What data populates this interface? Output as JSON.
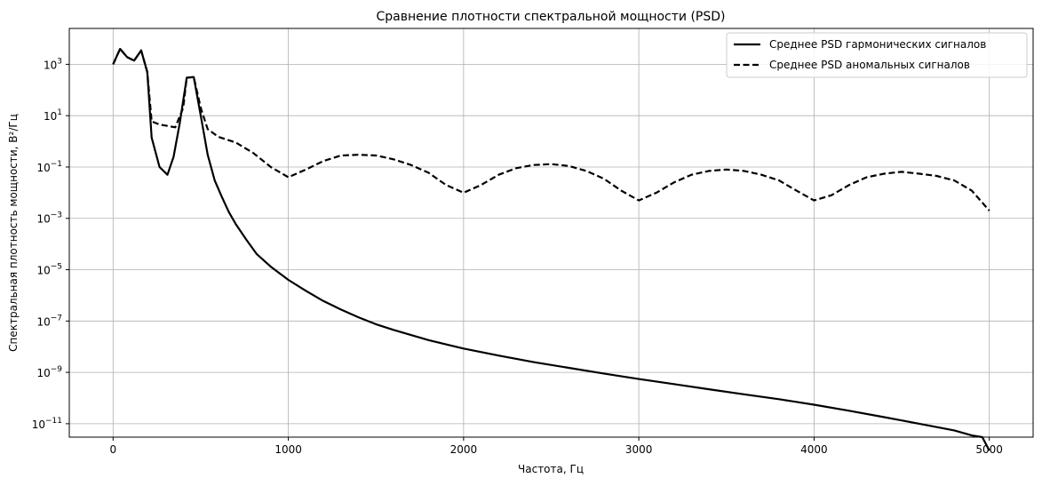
{
  "chart_data": {
    "type": "line",
    "title": "Сравнение плотности спектральной мощности (PSD)",
    "xlabel": "Частота, Гц",
    "ylabel": "Спектральная плотность мощности, В²/Гц",
    "xlim": [
      -250,
      5250
    ],
    "ylim": [
      3e-12,
      25000.0
    ],
    "yscale": "log",
    "grid": true,
    "legend_position": "top-right",
    "x_ticks": [
      {
        "value": 0,
        "label": "0"
      },
      {
        "value": 1000,
        "label": "1000"
      },
      {
        "value": 2000,
        "label": "2000"
      },
      {
        "value": 3000,
        "label": "3000"
      },
      {
        "value": 4000,
        "label": "4000"
      },
      {
        "value": 5000,
        "label": "5000"
      }
    ],
    "y_ticks": [
      {
        "value": 1000.0,
        "mantissa": "10",
        "exponent": "3"
      },
      {
        "value": 10.0,
        "mantissa": "10",
        "exponent": "1"
      },
      {
        "value": 0.1,
        "mantissa": "10",
        "exponent": "−1"
      },
      {
        "value": 0.001,
        "mantissa": "10",
        "exponent": "−3"
      },
      {
        "value": 1e-05,
        "mantissa": "10",
        "exponent": "−5"
      },
      {
        "value": 1e-07,
        "mantissa": "10",
        "exponent": "−7"
      },
      {
        "value": 1e-09,
        "mantissa": "10",
        "exponent": "−9"
      },
      {
        "value": 1e-11,
        "mantissa": "10",
        "exponent": "−11"
      }
    ],
    "series": [
      {
        "name": "Среднее PSD гармонических сигналов",
        "style": "solid",
        "color": "#000000",
        "x": [
          0,
          40,
          80,
          120,
          160,
          195,
          220,
          265,
          310,
          345,
          380,
          420,
          460,
          500,
          540,
          580,
          620,
          660,
          700,
          760,
          820,
          900,
          1000,
          1100,
          1200,
          1300,
          1400,
          1500,
          1600,
          1800,
          2000,
          2200,
          2400,
          2600,
          2800,
          3000,
          3200,
          3400,
          3600,
          3800,
          4000,
          4200,
          4400,
          4600,
          4800,
          4900,
          4960,
          5000
        ],
        "y": [
          1000,
          4000,
          1900,
          1400,
          3500,
          500,
          1.4,
          0.1,
          0.05,
          0.25,
          5,
          300,
          320,
          10,
          0.3,
          0.03,
          0.007,
          0.0018,
          0.0006,
          0.00015,
          4e-05,
          1.3e-05,
          4e-06,
          1.5e-06,
          6e-07,
          2.8e-07,
          1.4e-07,
          7.5e-08,
          4.5e-08,
          1.8e-08,
          8.5e-09,
          4.5e-09,
          2.5e-09,
          1.5e-09,
          9e-10,
          5.5e-10,
          3.5e-10,
          2.2e-10,
          1.4e-10,
          9e-11,
          5.5e-11,
          3.2e-11,
          1.8e-11,
          1e-11,
          5.5e-12,
          3.5e-12,
          3e-12,
          9e-13
        ]
      },
      {
        "name": "Среднее PSD аномальных сигналов",
        "style": "dashed",
        "color": "#000000",
        "x": [
          0,
          40,
          80,
          120,
          160,
          195,
          220,
          265,
          310,
          355,
          400,
          420,
          460,
          500,
          540,
          600,
          700,
          800,
          900,
          1000,
          1100,
          1200,
          1300,
          1400,
          1500,
          1600,
          1700,
          1800,
          1900,
          2000,
          2100,
          2200,
          2300,
          2400,
          2500,
          2600,
          2700,
          2800,
          2900,
          3000,
          3100,
          3200,
          3300,
          3400,
          3500,
          3600,
          3700,
          3800,
          3900,
          4000,
          4100,
          4200,
          4300,
          4400,
          4500,
          4600,
          4700,
          4800,
          4900,
          5000
        ],
        "y": [
          1000,
          4000,
          1900,
          1400,
          3500,
          500,
          6,
          4.5,
          4,
          3.5,
          20,
          300,
          320,
          20,
          3,
          1.5,
          0.9,
          0.35,
          0.1,
          0.04,
          0.08,
          0.17,
          0.28,
          0.3,
          0.28,
          0.2,
          0.12,
          0.06,
          0.02,
          0.01,
          0.02,
          0.05,
          0.09,
          0.12,
          0.13,
          0.11,
          0.07,
          0.035,
          0.012,
          0.005,
          0.01,
          0.025,
          0.05,
          0.07,
          0.08,
          0.07,
          0.05,
          0.03,
          0.012,
          0.005,
          0.008,
          0.02,
          0.04,
          0.055,
          0.065,
          0.055,
          0.045,
          0.03,
          0.012,
          0.002
        ]
      }
    ]
  }
}
